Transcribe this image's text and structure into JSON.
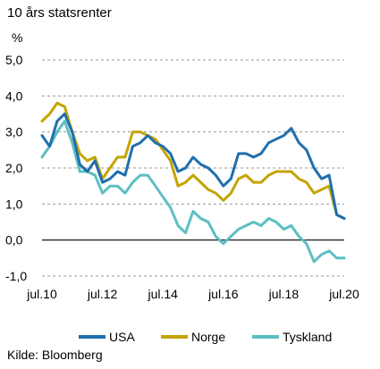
{
  "chart_data": {
    "type": "line",
    "title": "10 års statsrenter",
    "ylabel": "%",
    "source": "Kilde: Bloomberg",
    "ylim": [
      -1.0,
      5.0
    ],
    "yticks": [
      "5,0",
      "4,0",
      "3,0",
      "2,0",
      "1,0",
      "0,0",
      "-1,0"
    ],
    "yticks_values": [
      5,
      4,
      3,
      2,
      1,
      0,
      -1
    ],
    "xticks": [
      "jul.10",
      "jul.12",
      "jul.14",
      "jul.16",
      "jul.18",
      "jul.20"
    ],
    "xticks_values": [
      2010.5,
      2012.5,
      2014.5,
      2016.5,
      2018.5,
      2020.5
    ],
    "grid": "horizontal dashed",
    "legend_position": "bottom",
    "series": [
      {
        "name": "USA",
        "color": "#1f6fad",
        "x": [
          2010.5,
          2010.75,
          2011.0,
          2011.25,
          2011.5,
          2011.75,
          2012.0,
          2012.25,
          2012.5,
          2012.75,
          2013.0,
          2013.25,
          2013.5,
          2013.75,
          2014.0,
          2014.25,
          2014.5,
          2014.75,
          2015.0,
          2015.25,
          2015.5,
          2015.75,
          2016.0,
          2016.25,
          2016.5,
          2016.75,
          2017.0,
          2017.25,
          2017.5,
          2017.75,
          2018.0,
          2018.25,
          2018.5,
          2018.75,
          2019.0,
          2019.25,
          2019.5,
          2019.75,
          2020.0,
          2020.25,
          2020.5
        ],
        "y": [
          2.9,
          2.6,
          3.3,
          3.5,
          3.0,
          2.1,
          1.9,
          2.2,
          1.6,
          1.7,
          1.9,
          1.8,
          2.6,
          2.7,
          2.9,
          2.7,
          2.6,
          2.4,
          1.9,
          2.0,
          2.3,
          2.1,
          2.0,
          1.8,
          1.5,
          1.7,
          2.4,
          2.4,
          2.3,
          2.4,
          2.7,
          2.8,
          2.9,
          3.1,
          2.7,
          2.5,
          2.0,
          1.7,
          1.8,
          0.7,
          0.6
        ]
      },
      {
        "name": "Norge",
        "color": "#c4a400",
        "x": [
          2010.5,
          2010.75,
          2011.0,
          2011.25,
          2011.5,
          2011.75,
          2012.0,
          2012.25,
          2012.5,
          2012.75,
          2013.0,
          2013.25,
          2013.5,
          2013.75,
          2014.0,
          2014.25,
          2014.5,
          2014.75,
          2015.0,
          2015.25,
          2015.5,
          2015.75,
          2016.0,
          2016.25,
          2016.5,
          2016.75,
          2017.0,
          2017.25,
          2017.5,
          2017.75,
          2018.0,
          2018.25,
          2018.5,
          2018.75,
          2019.0,
          2019.25,
          2019.5,
          2019.75,
          2020.0,
          2020.25,
          2020.5
        ],
        "y": [
          3.3,
          3.5,
          3.8,
          3.7,
          3.0,
          2.4,
          2.2,
          2.3,
          1.7,
          2.0,
          2.3,
          2.3,
          3.0,
          3.0,
          2.9,
          2.8,
          2.5,
          2.2,
          1.5,
          1.6,
          1.8,
          1.6,
          1.4,
          1.3,
          1.1,
          1.3,
          1.7,
          1.8,
          1.6,
          1.6,
          1.8,
          1.9,
          1.9,
          1.9,
          1.7,
          1.6,
          1.3,
          1.4,
          1.5,
          0.7,
          0.6
        ]
      },
      {
        "name": "Tyskland",
        "color": "#5bbfc2",
        "x": [
          2010.5,
          2010.75,
          2011.0,
          2011.25,
          2011.5,
          2011.75,
          2012.0,
          2012.25,
          2012.5,
          2012.75,
          2013.0,
          2013.25,
          2013.5,
          2013.75,
          2014.0,
          2014.25,
          2014.5,
          2014.75,
          2015.0,
          2015.25,
          2015.5,
          2015.75,
          2016.0,
          2016.25,
          2016.5,
          2016.75,
          2017.0,
          2017.25,
          2017.5,
          2017.75,
          2018.0,
          2018.25,
          2018.5,
          2018.75,
          2019.0,
          2019.25,
          2019.5,
          2019.75,
          2020.0,
          2020.25,
          2020.5
        ],
        "y": [
          2.3,
          2.6,
          3.0,
          3.3,
          2.7,
          1.9,
          1.9,
          1.8,
          1.3,
          1.5,
          1.5,
          1.3,
          1.6,
          1.8,
          1.8,
          1.5,
          1.2,
          0.9,
          0.4,
          0.2,
          0.8,
          0.6,
          0.5,
          0.1,
          -0.1,
          0.1,
          0.3,
          0.4,
          0.5,
          0.4,
          0.6,
          0.5,
          0.3,
          0.4,
          0.1,
          -0.1,
          -0.6,
          -0.4,
          -0.3,
          -0.5,
          -0.5
        ]
      }
    ]
  }
}
